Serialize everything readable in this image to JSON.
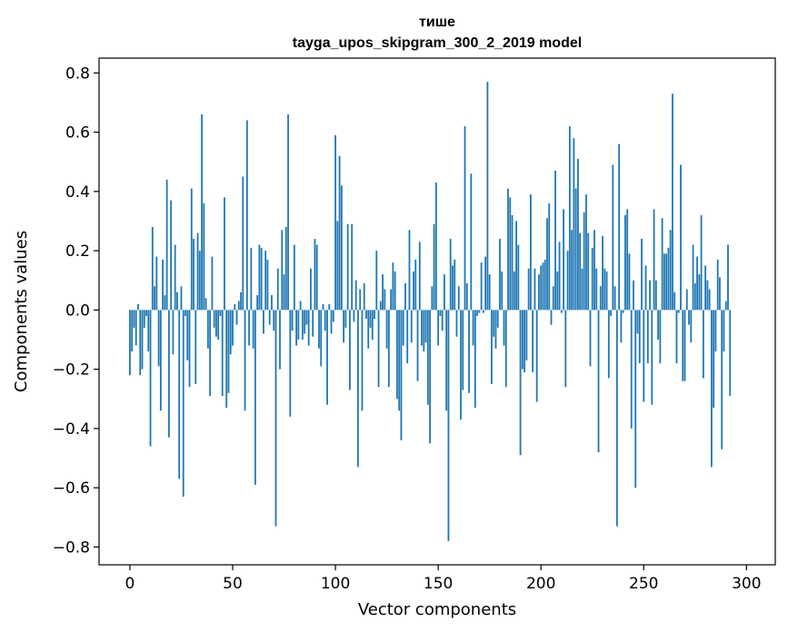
{
  "chart_data": {
    "type": "bar",
    "title_line1": "тише",
    "title_line2": "tayga_upos_skipgram_300_2_2019 model",
    "xlabel": "Vector components",
    "ylabel": "Components values",
    "xlim": [
      -15,
      314
    ],
    "ylim": [
      -0.86,
      0.85
    ],
    "xticks": [
      0,
      50,
      100,
      150,
      200,
      250,
      300
    ],
    "xtick_labels": [
      "0",
      "50",
      "100",
      "150",
      "200",
      "250",
      "300"
    ],
    "yticks": [
      0.8,
      0.6,
      0.4,
      0.2,
      0.0,
      -0.2,
      -0.4,
      -0.6,
      -0.8
    ],
    "ytick_labels": [
      "0.8",
      "0.6",
      "0.4",
      "0.2",
      "0.0",
      "−0.2",
      "−0.4",
      "−0.6",
      "−0.8"
    ],
    "bar_color": "#1f77b4",
    "values": [
      -0.22,
      -0.14,
      -0.06,
      -0.12,
      0.02,
      -0.22,
      -0.2,
      -0.06,
      -0.02,
      -0.14,
      -0.46,
      0.28,
      0.08,
      0.18,
      -0.19,
      -0.34,
      0.17,
      0.05,
      0.44,
      -0.43,
      0.37,
      -0.15,
      0.22,
      0.06,
      -0.57,
      0.08,
      -0.63,
      -0.02,
      -0.17,
      -0.26,
      0.41,
      0.24,
      -0.25,
      0.26,
      0.2,
      0.66,
      0.36,
      0.04,
      -0.13,
      -0.29,
      0.18,
      -0.06,
      -0.09,
      -0.1,
      -0.02,
      -0.29,
      0.38,
      -0.33,
      -0.28,
      -0.15,
      -0.12,
      0.02,
      -0.05,
      0.03,
      0.06,
      0.45,
      -0.34,
      0.64,
      -0.12,
      0.21,
      -0.13,
      -0.59,
      0.05,
      0.22,
      0.21,
      -0.08,
      0.2,
      0.17,
      -0.05,
      0.05,
      -0.07,
      -0.73,
      0.14,
      -0.2,
      0.27,
      0.12,
      0.28,
      0.66,
      -0.36,
      -0.07,
      0.22,
      -0.12,
      -0.1,
      0.03,
      -0.1,
      -0.08,
      -0.05,
      -0.12,
      0.14,
      -0.09,
      0.24,
      0.22,
      -0.13,
      -0.19,
      0.02,
      -0.07,
      -0.32,
      0.02,
      -0.08,
      -0.04,
      0.59,
      0.3,
      0.52,
      0.42,
      -0.11,
      -0.06,
      0.29,
      -0.27,
      0.29,
      -0.04,
      0.1,
      -0.53,
      0.07,
      -0.34,
      0.09,
      -0.03,
      -0.13,
      -0.06,
      -0.1,
      -0.03,
      0.2,
      -0.26,
      0.03,
      0.12,
      0.07,
      -0.13,
      -0.26,
      0.07,
      0.16,
      0.13,
      -0.3,
      -0.34,
      -0.44,
      -0.12,
      0.09,
      -0.18,
      0.27,
      -0.11,
      0.13,
      0.17,
      -0.24,
      0.23,
      -0.12,
      -0.14,
      -0.11,
      -0.32,
      -0.45,
      0.08,
      0.29,
      0.43,
      -0.12,
      -0.02,
      -0.07,
      0.12,
      -0.34,
      -0.78,
      0.24,
      0.15,
      0.17,
      -0.09,
      0.08,
      -0.37,
      -0.27,
      0.62,
      0.09,
      -0.28,
      0.46,
      -0.12,
      -0.33,
      -0.02,
      -0.01,
      0.16,
      -0.01,
      0.18,
      0.77,
      0.12,
      -0.25,
      -0.09,
      -0.13,
      -0.06,
      0.24,
      0.13,
      -0.12,
      -0.26,
      0.41,
      0.38,
      0.32,
      0.13,
      0.3,
      0.22,
      -0.49,
      -0.2,
      -0.21,
      -0.17,
      0.14,
      0.39,
      -0.21,
      0.14,
      -0.31,
      0.12,
      0.15,
      0.16,
      0.17,
      0.31,
      0.36,
      -0.05,
      0.08,
      0.47,
      0.13,
      0.23,
      -0.01,
      0.34,
      -0.26,
      0.2,
      0.62,
      0.27,
      0.58,
      0.41,
      0.51,
      0.26,
      0.14,
      0.33,
      0.39,
      0.26,
      -0.19,
      0.21,
      0.27,
      0.14,
      -0.48,
      0.08,
      0.25,
      0.14,
      0.13,
      -0.23,
      -0.02,
      0.49,
      0.08,
      -0.73,
      0.56,
      -0.11,
      -0.01,
      0.32,
      0.34,
      0.19,
      -0.4,
      0.1,
      -0.6,
      -0.08,
      -0.18,
      0.24,
      -0.31,
      0.15,
      -0.18,
      0.1,
      -0.32,
      0.34,
      0.1,
      -0.1,
      -0.18,
      0.31,
      0.19,
      0.19,
      0.21,
      0.27,
      0.73,
      0.06,
      -0.18,
      -0.01,
      0.49,
      -0.24,
      -0.24,
      0.07,
      -0.05,
      -0.11,
      0.22,
      0.09,
      0.18,
      0.12,
      0.32,
      -0.23,
      0.15,
      0.1,
      0.07,
      -0.53,
      -0.33,
      -0.14,
      0.17,
      0.11,
      -0.47,
      -0.14,
      0.03,
      0.22,
      -0.29
    ]
  }
}
